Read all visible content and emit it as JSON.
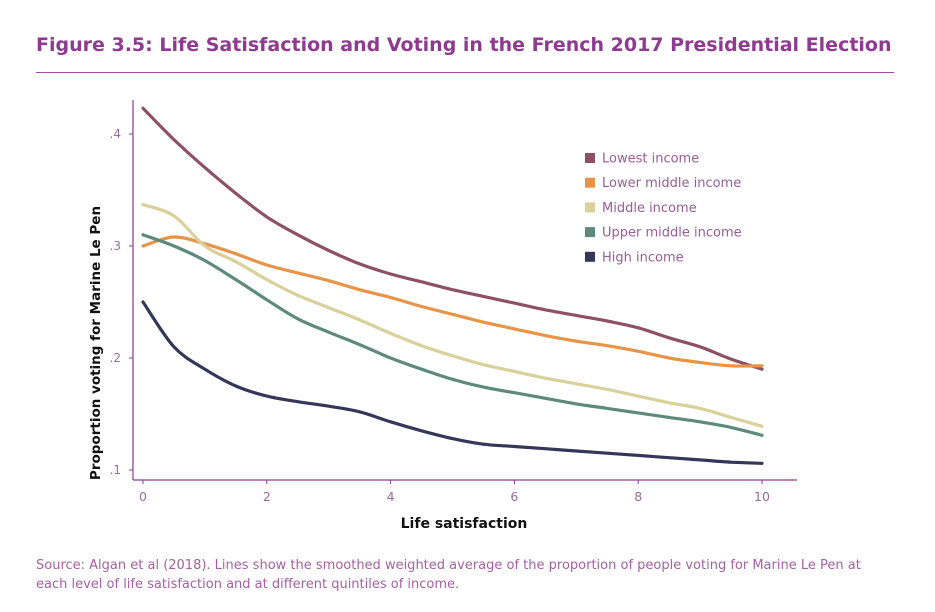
{
  "header": {
    "title": "Figure 3.5: Life Satisfaction and Voting in the French 2017 Presidential Election"
  },
  "footer": {
    "source": "Source: Algan et al (2018). Lines show the smoothed weighted average of the proportion of people voting for Marine Le Pen at each level of life satisfaction and at different quintiles of income."
  },
  "colors": {
    "title": "#8e3a8f",
    "source": "#a85fa5",
    "axis": "#8e3a8f",
    "tick_label": "#9a6aa0"
  },
  "chart_data": {
    "type": "line",
    "title": "",
    "xlabel": "Life satisfaction",
    "ylabel": "Proportion voting for Marine Le Pen",
    "xlim": [
      0,
      10
    ],
    "ylim": [
      0.1,
      0.43
    ],
    "xticks": [
      0,
      2,
      4,
      6,
      8,
      10
    ],
    "xtick_labels": [
      "0",
      "2",
      "4",
      "6",
      "8",
      "10"
    ],
    "yticks": [
      0.1,
      0.2,
      0.3,
      0.4
    ],
    "ytick_labels": [
      ".1",
      ".2",
      ".3",
      ".4"
    ],
    "grid": false,
    "legend_position": "top-right",
    "x": [
      0,
      0.5,
      1,
      1.5,
      2,
      2.5,
      3,
      3.5,
      4,
      4.5,
      5,
      5.5,
      6,
      6.5,
      7,
      7.5,
      8,
      8.5,
      9,
      9.5,
      10
    ],
    "series": [
      {
        "name": "Lowest income",
        "color": "#8e5064",
        "values": [
          0.423,
          0.395,
          0.37,
          0.347,
          0.326,
          0.31,
          0.296,
          0.284,
          0.275,
          0.268,
          0.261,
          0.255,
          0.249,
          0.243,
          0.238,
          0.233,
          0.227,
          0.218,
          0.21,
          0.199,
          0.19
        ]
      },
      {
        "name": "Lower middle income",
        "color": "#e89448",
        "values": [
          0.3,
          0.308,
          0.302,
          0.293,
          0.283,
          0.276,
          0.269,
          0.261,
          0.254,
          0.246,
          0.239,
          0.232,
          0.226,
          0.22,
          0.215,
          0.211,
          0.206,
          0.2,
          0.196,
          0.193,
          0.193
        ]
      },
      {
        "name": "Middle income",
        "color": "#d9d09a",
        "values": [
          0.337,
          0.327,
          0.3,
          0.286,
          0.27,
          0.256,
          0.245,
          0.234,
          0.222,
          0.211,
          0.202,
          0.194,
          0.188,
          0.182,
          0.177,
          0.172,
          0.166,
          0.16,
          0.155,
          0.147,
          0.139
        ]
      },
      {
        "name": "Upper middle income",
        "color": "#5e8a7c",
        "values": [
          0.31,
          0.3,
          0.287,
          0.27,
          0.252,
          0.235,
          0.223,
          0.212,
          0.2,
          0.19,
          0.181,
          0.174,
          0.169,
          0.164,
          0.159,
          0.155,
          0.151,
          0.147,
          0.143,
          0.138,
          0.131
        ]
      },
      {
        "name": "High income",
        "color": "#34375a",
        "values": [
          0.25,
          0.21,
          0.19,
          0.175,
          0.166,
          0.161,
          0.157,
          0.152,
          0.143,
          0.135,
          0.128,
          0.123,
          0.121,
          0.119,
          0.117,
          0.115,
          0.113,
          0.111,
          0.109,
          0.107,
          0.106
        ]
      }
    ]
  }
}
